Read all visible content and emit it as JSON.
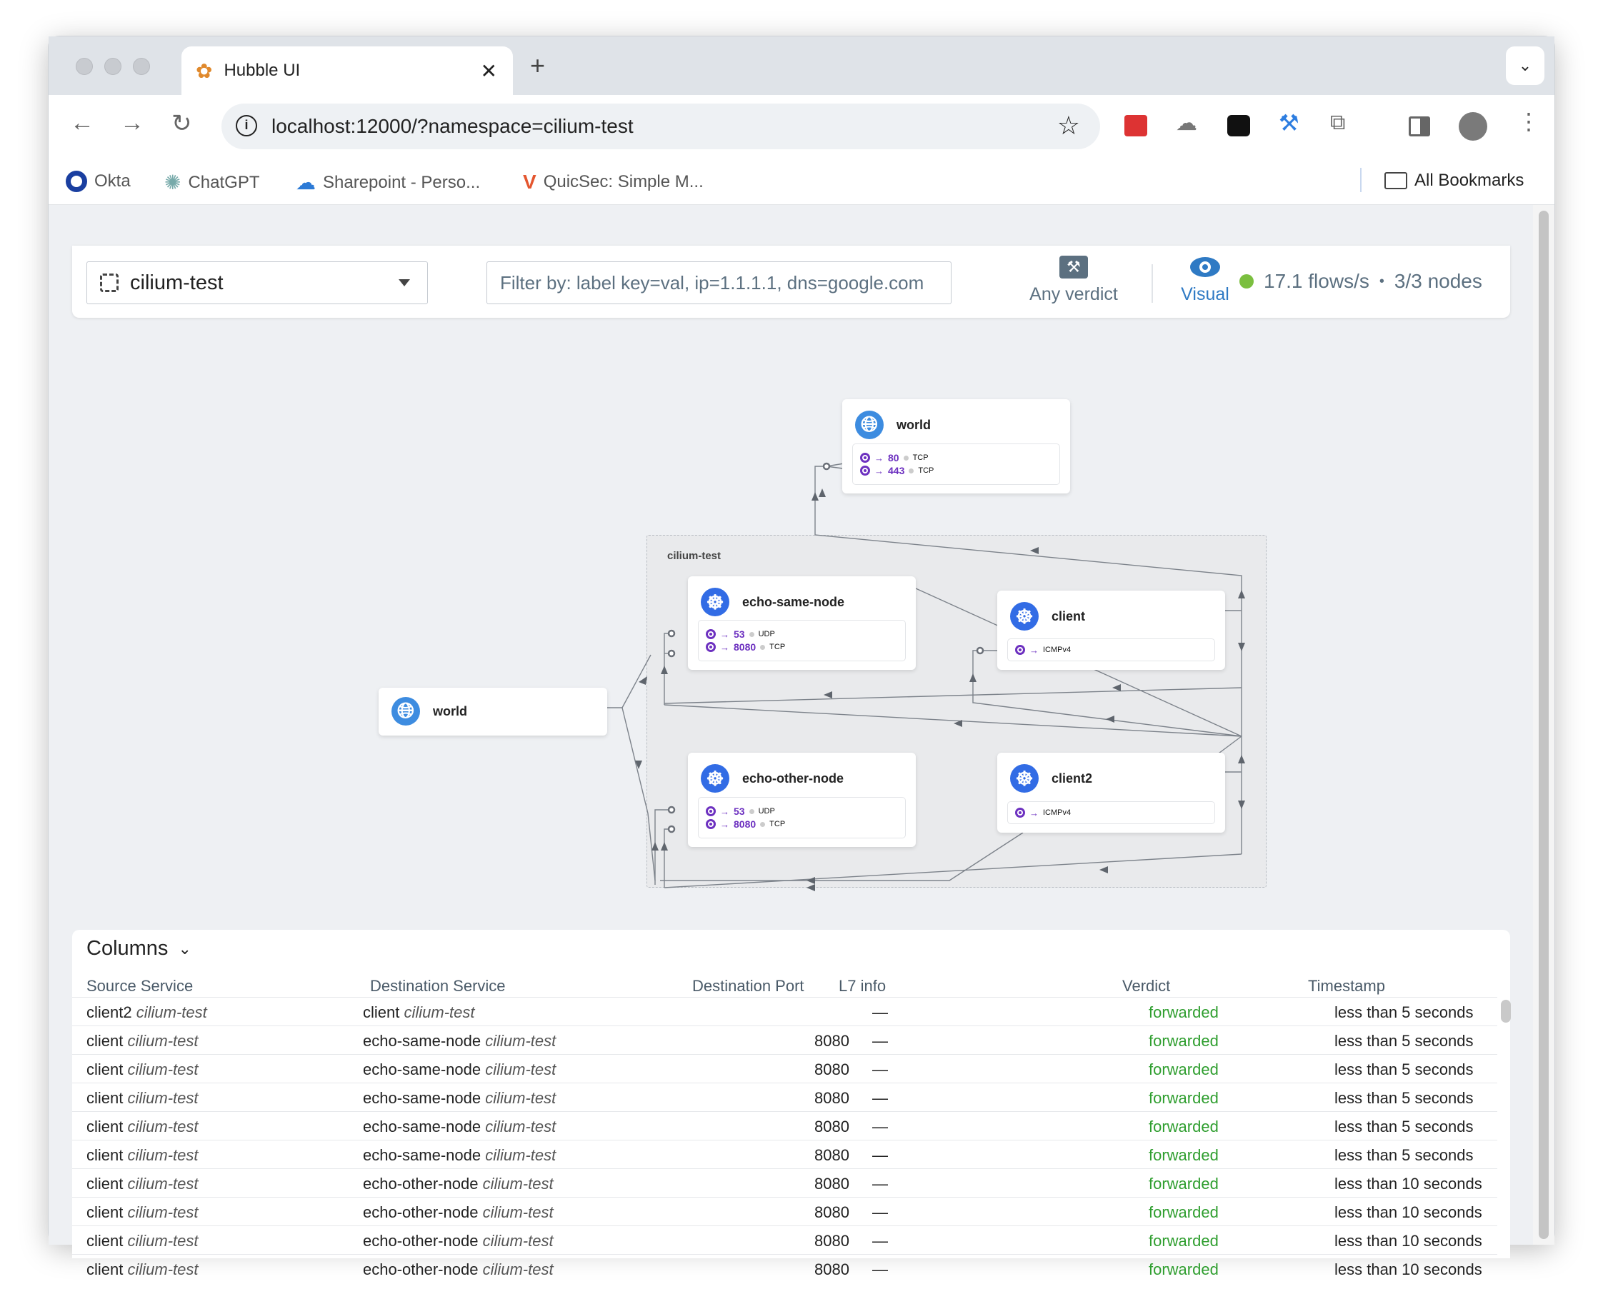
{
  "browser": {
    "tab_title": "Hubble UI",
    "url": "localhost:12000/?namespace=cilium-test",
    "bookmarks": [
      "Okta",
      "ChatGPT",
      "Sharepoint - Perso...",
      "QuicSec: Simple M..."
    ],
    "all_bookmarks": "All Bookmarks"
  },
  "topbar": {
    "namespace": "cilium-test",
    "filter_placeholder": "Filter by: label key=val, ip=1.1.1.1, dns=google.com",
    "verdict_label": "Any verdict",
    "visual_label": "Visual",
    "flows_rate": "17.1 flows/s",
    "separator": "•",
    "nodes": "3/3 nodes",
    "status_color": "#7bbf3f",
    "accent": "#2f7ac4"
  },
  "graph": {
    "namespace_label": "cilium-test",
    "nodes": {
      "world_top": {
        "name": "world",
        "icon": "globe-icon",
        "ports": [
          {
            "port": "80",
            "proto": "TCP"
          },
          {
            "port": "443",
            "proto": "TCP"
          }
        ]
      },
      "echo_same_node": {
        "name": "echo-same-node",
        "icon": "kubernetes-icon",
        "ports": [
          {
            "port": "53",
            "proto": "UDP"
          },
          {
            "port": "8080",
            "proto": "TCP"
          }
        ]
      },
      "client": {
        "name": "client",
        "icon": "kubernetes-icon",
        "ports": [
          {
            "port": "",
            "proto": "ICMPv4"
          }
        ]
      },
      "world_left": {
        "name": "world",
        "icon": "globe-icon"
      },
      "echo_other_node": {
        "name": "echo-other-node",
        "icon": "kubernetes-icon",
        "ports": [
          {
            "port": "53",
            "proto": "UDP"
          },
          {
            "port": "8080",
            "proto": "TCP"
          }
        ]
      },
      "client2": {
        "name": "client2",
        "icon": "kubernetes-icon",
        "ports": [
          {
            "port": "",
            "proto": "ICMPv4"
          }
        ]
      }
    }
  },
  "flows": {
    "columns_button": "Columns",
    "headers": [
      "Source Service",
      "Destination Service",
      "Destination Port",
      "L7 info",
      "Verdict",
      "Timestamp"
    ],
    "rows": [
      {
        "src": "client2",
        "src_ns": "cilium-test",
        "dst": "client",
        "dst_ns": "cilium-test",
        "port": "",
        "l7": "—",
        "verdict": "forwarded",
        "time": "less than 5 seconds"
      },
      {
        "src": "client",
        "src_ns": "cilium-test",
        "dst": "echo-same-node",
        "dst_ns": "cilium-test",
        "port": "8080",
        "l7": "—",
        "verdict": "forwarded",
        "time": "less than 5 seconds"
      },
      {
        "src": "client",
        "src_ns": "cilium-test",
        "dst": "echo-same-node",
        "dst_ns": "cilium-test",
        "port": "8080",
        "l7": "—",
        "verdict": "forwarded",
        "time": "less than 5 seconds"
      },
      {
        "src": "client",
        "src_ns": "cilium-test",
        "dst": "echo-same-node",
        "dst_ns": "cilium-test",
        "port": "8080",
        "l7": "—",
        "verdict": "forwarded",
        "time": "less than 5 seconds"
      },
      {
        "src": "client",
        "src_ns": "cilium-test",
        "dst": "echo-same-node",
        "dst_ns": "cilium-test",
        "port": "8080",
        "l7": "—",
        "verdict": "forwarded",
        "time": "less than 5 seconds"
      },
      {
        "src": "client",
        "src_ns": "cilium-test",
        "dst": "echo-same-node",
        "dst_ns": "cilium-test",
        "port": "8080",
        "l7": "—",
        "verdict": "forwarded",
        "time": "less than 5 seconds"
      },
      {
        "src": "client",
        "src_ns": "cilium-test",
        "dst": "echo-other-node",
        "dst_ns": "cilium-test",
        "port": "8080",
        "l7": "—",
        "verdict": "forwarded",
        "time": "less than 10 seconds"
      },
      {
        "src": "client",
        "src_ns": "cilium-test",
        "dst": "echo-other-node",
        "dst_ns": "cilium-test",
        "port": "8080",
        "l7": "—",
        "verdict": "forwarded",
        "time": "less than 10 seconds"
      },
      {
        "src": "client",
        "src_ns": "cilium-test",
        "dst": "echo-other-node",
        "dst_ns": "cilium-test",
        "port": "8080",
        "l7": "—",
        "verdict": "forwarded",
        "time": "less than 10 seconds"
      },
      {
        "src": "client",
        "src_ns": "cilium-test",
        "dst": "echo-other-node",
        "dst_ns": "cilium-test",
        "port": "8080",
        "l7": "—",
        "verdict": "forwarded",
        "time": "less than 10 seconds"
      }
    ]
  }
}
